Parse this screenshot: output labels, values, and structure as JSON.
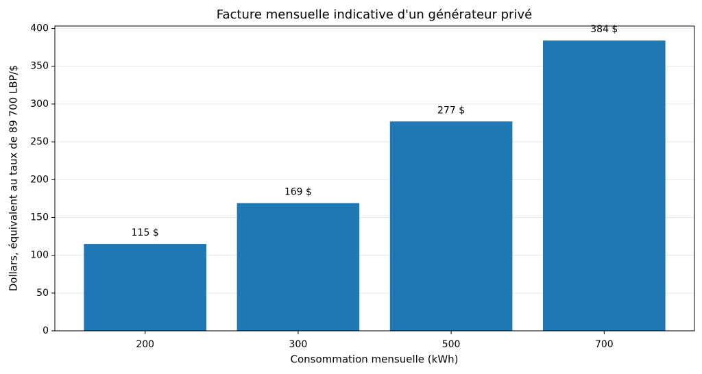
{
  "chart_data": {
    "type": "bar",
    "title": "Facture mensuelle indicative d'un générateur privé",
    "x_label": "Consommation mensuelle (kWh)",
    "y_label": "Dollars, équivalent au taux de 89 700 LBP/$",
    "categories": [
      "200",
      "300",
      "500",
      "700"
    ],
    "values": [
      115,
      169,
      277,
      384
    ],
    "value_labels": [
      "115 $",
      "169 $",
      "277 $",
      "384 $"
    ],
    "color": "#1f77b4",
    "ylim": [
      0,
      403.2
    ],
    "yticks": [
      0,
      50,
      100,
      150,
      200,
      250,
      300,
      350,
      400
    ],
    "grid": true
  }
}
